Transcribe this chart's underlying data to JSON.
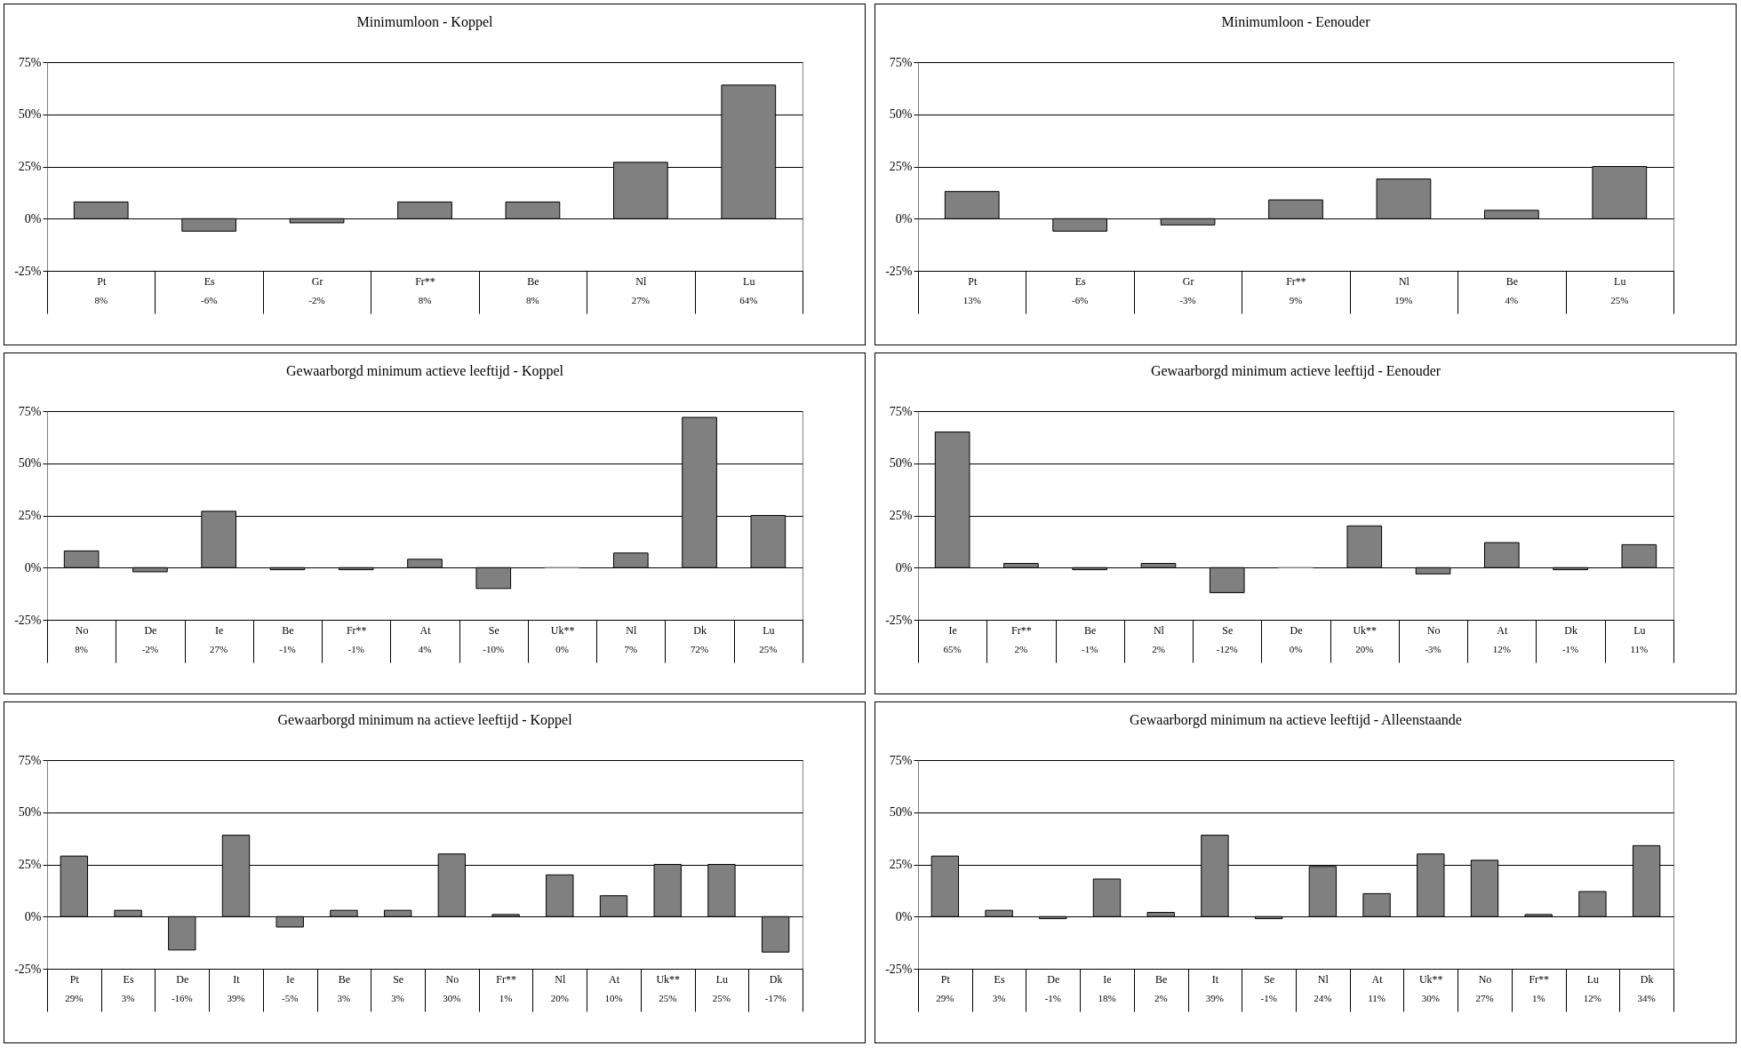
{
  "chart_data": [
    {
      "type": "bar",
      "title": "Minimumloon - Koppel",
      "categories": [
        "Pt",
        "Es",
        "Gr",
        "Fr**",
        "Be",
        "Nl",
        "Lu"
      ],
      "values": [
        8,
        -6,
        -2,
        8,
        8,
        27,
        64
      ],
      "value_labels": [
        "8%",
        "-6%",
        "-2%",
        "8%",
        "8%",
        "27%",
        "64%"
      ],
      "color": "#808080",
      "ylim": [
        -25,
        75
      ],
      "yticks": [
        {
          "value": -25,
          "label": "-25%"
        },
        {
          "value": 0,
          "label": "0%"
        },
        {
          "value": 25,
          "label": "25%"
        },
        {
          "value": 50,
          "label": "50%"
        },
        {
          "value": 75,
          "label": "75%"
        }
      ],
      "grid": "y"
    },
    {
      "type": "bar",
      "title": "Minimumloon - Eenouder",
      "categories": [
        "Pt",
        "Es",
        "Gr",
        "Fr**",
        "Nl",
        "Be",
        "Lu"
      ],
      "values": [
        13,
        -6,
        -3,
        9,
        19,
        4,
        25
      ],
      "value_labels": [
        "13%",
        "-6%",
        "-3%",
        "9%",
        "19%",
        "4%",
        "25%"
      ],
      "color": "#808080",
      "ylim": [
        -25,
        75
      ],
      "yticks": [
        {
          "value": -25,
          "label": "-25%"
        },
        {
          "value": 0,
          "label": "0%"
        },
        {
          "value": 25,
          "label": "25%"
        },
        {
          "value": 50,
          "label": "50%"
        },
        {
          "value": 75,
          "label": "75%"
        }
      ],
      "grid": "y"
    },
    {
      "type": "bar",
      "title": "Gewaarborgd minimum actieve leeftijd - Koppel",
      "categories": [
        "No",
        "De",
        "Ie",
        "Be",
        "Fr**",
        "At",
        "Se",
        "Uk**",
        "Nl",
        "Dk",
        "Lu"
      ],
      "values": [
        8,
        -2,
        27,
        -1,
        -1,
        4,
        -10,
        0,
        7,
        72,
        25
      ],
      "value_labels": [
        "8%",
        "-2%",
        "27%",
        "-1%",
        "-1%",
        "4%",
        "-10%",
        "0%",
        "7%",
        "72%",
        "25%"
      ],
      "color": "#808080",
      "ylim": [
        -25,
        75
      ],
      "yticks": [
        {
          "value": -25,
          "label": "-25%"
        },
        {
          "value": 0,
          "label": "0%"
        },
        {
          "value": 25,
          "label": "25%"
        },
        {
          "value": 50,
          "label": "50%"
        },
        {
          "value": 75,
          "label": "75%"
        }
      ],
      "grid": "y"
    },
    {
      "type": "bar",
      "title": "Gewaarborgd minimum actieve leeftijd - Eenouder",
      "categories": [
        "Ie",
        "Fr**",
        "Be",
        "Nl",
        "Se",
        "De",
        "Uk**",
        "No",
        "At",
        "Dk",
        "Lu"
      ],
      "values": [
        65,
        2,
        -1,
        2,
        -12,
        0,
        20,
        -3,
        12,
        -1,
        11
      ],
      "value_labels": [
        "65%",
        "2%",
        "-1%",
        "2%",
        "-12%",
        "0%",
        "20%",
        "-3%",
        "12%",
        "-1%",
        "11%"
      ],
      "color": "#808080",
      "ylim": [
        -25,
        75
      ],
      "yticks": [
        {
          "value": -25,
          "label": "-25%"
        },
        {
          "value": 0,
          "label": "0%"
        },
        {
          "value": 25,
          "label": "25%"
        },
        {
          "value": 50,
          "label": "50%"
        },
        {
          "value": 75,
          "label": "75%"
        }
      ],
      "grid": "y"
    },
    {
      "type": "bar",
      "title": "Gewaarborgd minimum na actieve leeftijd - Koppel",
      "categories": [
        "Pt",
        "Es",
        "De",
        "It",
        "Ie",
        "Be",
        "Se",
        "No",
        "Fr**",
        "Nl",
        "At",
        "Uk**",
        "Lu",
        "Dk"
      ],
      "values": [
        29,
        3,
        -16,
        39,
        -5,
        3,
        3,
        30,
        1,
        20,
        10,
        25,
        25,
        -17
      ],
      "value_labels": [
        "29%",
        "3%",
        "-16%",
        "39%",
        "-5%",
        "3%",
        "3%",
        "30%",
        "1%",
        "20%",
        "10%",
        "25%",
        "25%",
        "-17%"
      ],
      "color": "#808080",
      "ylim": [
        -25,
        75
      ],
      "yticks": [
        {
          "value": -25,
          "label": "-25%"
        },
        {
          "value": 0,
          "label": "0%"
        },
        {
          "value": 25,
          "label": "25%"
        },
        {
          "value": 50,
          "label": "50%"
        },
        {
          "value": 75,
          "label": "75%"
        }
      ],
      "grid": "y"
    },
    {
      "type": "bar",
      "title": "Gewaarborgd minimum na actieve leeftijd - Alleenstaande",
      "categories": [
        "Pt",
        "Es",
        "De",
        "Ie",
        "Be",
        "It",
        "Se",
        "Nl",
        "At",
        "Uk**",
        "No",
        "Fr**",
        "Lu",
        "Dk"
      ],
      "values": [
        29,
        3,
        -1,
        18,
        2,
        39,
        -1,
        24,
        11,
        30,
        27,
        1,
        12,
        34
      ],
      "value_labels": [
        "29%",
        "3%",
        "-1%",
        "18%",
        "2%",
        "39%",
        "-1%",
        "24%",
        "11%",
        "30%",
        "27%",
        "1%",
        "12%",
        "34%"
      ],
      "color": "#808080",
      "ylim": [
        -25,
        75
      ],
      "yticks": [
        {
          "value": -25,
          "label": "-25%"
        },
        {
          "value": 0,
          "label": "0%"
        },
        {
          "value": 25,
          "label": "25%"
        },
        {
          "value": 50,
          "label": "50%"
        },
        {
          "value": 75,
          "label": "75%"
        }
      ],
      "grid": "y"
    }
  ]
}
